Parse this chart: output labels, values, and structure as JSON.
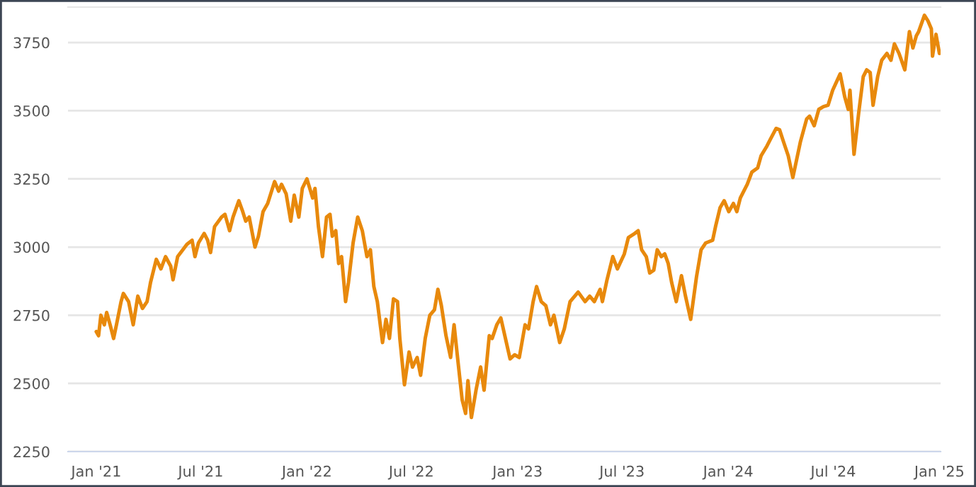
{
  "chart_data": {
    "type": "line",
    "xlim": [
      "2020-11-13",
      "2025-01-03"
    ],
    "ylim": [
      2250,
      3880
    ],
    "xticks": [
      {
        "value": "2021-01-01",
        "label": "Jan '21"
      },
      {
        "value": "2021-07-01",
        "label": "Jul '21"
      },
      {
        "value": "2022-01-01",
        "label": "Jan '22"
      },
      {
        "value": "2022-07-01",
        "label": "Jul '22"
      },
      {
        "value": "2023-01-01",
        "label": "Jan '23"
      },
      {
        "value": "2023-07-01",
        "label": "Jul '23"
      },
      {
        "value": "2024-01-01",
        "label": "Jan '24"
      },
      {
        "value": "2024-07-01",
        "label": "Jul '24"
      },
      {
        "value": "2025-01-01",
        "label": "Jan '25"
      }
    ],
    "yticks": [
      2250,
      2500,
      2750,
      3000,
      3250,
      3500,
      3750
    ],
    "grid": "y",
    "marker": "none",
    "line_style": "solid",
    "series": [
      {
        "color": "#e8890c",
        "x": [
          "2021-01-01",
          "2021-01-05",
          "2021-01-09",
          "2021-01-15",
          "2021-01-19",
          "2021-01-25",
          "2021-01-31",
          "2021-02-05",
          "2021-02-13",
          "2021-02-17",
          "2021-02-26",
          "2021-03-06",
          "2021-03-14",
          "2021-03-22",
          "2021-03-30",
          "2021-04-05",
          "2021-04-15",
          "2021-04-23",
          "2021-05-01",
          "2021-05-10",
          "2021-05-14",
          "2021-05-22",
          "2021-06-07",
          "2021-06-16",
          "2021-06-21",
          "2021-06-27",
          "2021-07-07",
          "2021-07-13",
          "2021-07-18",
          "2021-07-25",
          "2021-08-06",
          "2021-08-12",
          "2021-08-20",
          "2021-08-26",
          "2021-09-05",
          "2021-09-11",
          "2021-09-17",
          "2021-09-23",
          "2021-10-03",
          "2021-10-09",
          "2021-10-17",
          "2021-10-25",
          "2021-11-06",
          "2021-11-13",
          "2021-11-18",
          "2021-11-26",
          "2021-12-04",
          "2021-12-10",
          "2021-12-18",
          "2021-12-24",
          "2022-01-01",
          "2022-01-11",
          "2022-01-15",
          "2022-01-21",
          "2022-01-28",
          "2022-02-04",
          "2022-02-10",
          "2022-02-14",
          "2022-02-20",
          "2022-02-25",
          "2022-03-02",
          "2022-03-09",
          "2022-03-14",
          "2022-03-22",
          "2022-03-30",
          "2022-04-07",
          "2022-04-15",
          "2022-04-21",
          "2022-04-27",
          "2022-05-03",
          "2022-05-12",
          "2022-05-18",
          "2022-05-24",
          "2022-05-31",
          "2022-06-07",
          "2022-06-11",
          "2022-06-19",
          "2022-06-27",
          "2022-07-03",
          "2022-07-11",
          "2022-07-17",
          "2022-07-25",
          "2022-08-02",
          "2022-08-10",
          "2022-08-16",
          "2022-08-22",
          "2022-08-30",
          "2022-09-07",
          "2022-09-13",
          "2022-09-19",
          "2022-09-27",
          "2022-10-03",
          "2022-10-07",
          "2022-10-13",
          "2022-10-21",
          "2022-10-29",
          "2022-11-04",
          "2022-11-13",
          "2022-11-18",
          "2022-11-26",
          "2022-12-03",
          "2022-12-11",
          "2022-12-19",
          "2022-12-27",
          "2023-01-04",
          "2023-01-14",
          "2023-01-20",
          "2023-01-28",
          "2023-02-03",
          "2023-02-11",
          "2023-02-19",
          "2023-02-27",
          "2023-03-05",
          "2023-03-15",
          "2023-03-23",
          "2023-04-02",
          "2023-04-16",
          "2023-04-28",
          "2023-05-06",
          "2023-05-14",
          "2023-05-24",
          "2023-05-28",
          "2023-06-05",
          "2023-06-15",
          "2023-06-23",
          "2023-07-05",
          "2023-07-12",
          "2023-07-23",
          "2023-07-29",
          "2023-08-04",
          "2023-08-12",
          "2023-08-18",
          "2023-08-25",
          "2023-08-31",
          "2023-09-07",
          "2023-09-13",
          "2023-09-19",
          "2023-09-25",
          "2023-10-03",
          "2023-10-12",
          "2023-10-19",
          "2023-10-28",
          "2023-11-07",
          "2023-11-15",
          "2023-11-23",
          "2023-12-05",
          "2023-12-10",
          "2023-12-18",
          "2023-12-25",
          "2024-01-02",
          "2024-01-10",
          "2024-01-16",
          "2024-01-22",
          "2024-02-03",
          "2024-02-11",
          "2024-02-21",
          "2024-02-27",
          "2024-03-08",
          "2024-03-14",
          "2024-03-24",
          "2024-03-30",
          "2024-04-06",
          "2024-04-14",
          "2024-04-22",
          "2024-04-30",
          "2024-05-05",
          "2024-05-16",
          "2024-05-21",
          "2024-05-29",
          "2024-06-06",
          "2024-06-14",
          "2024-06-22",
          "2024-06-30",
          "2024-07-13",
          "2024-07-21",
          "2024-07-27",
          "2024-07-30",
          "2024-08-06",
          "2024-08-14",
          "2024-08-22",
          "2024-08-28",
          "2024-09-03",
          "2024-09-08",
          "2024-09-16",
          "2024-09-23",
          "2024-10-02",
          "2024-10-09",
          "2024-10-15",
          "2024-10-23",
          "2024-11-02",
          "2024-11-10",
          "2024-11-16",
          "2024-11-22",
          "2024-11-26",
          "2024-12-06",
          "2024-12-12",
          "2024-12-18",
          "2024-12-20",
          "2024-12-26",
          "2025-01-01"
        ],
        "values": [
          2690,
          2675,
          2750,
          2715,
          2760,
          2715,
          2665,
          2715,
          2800,
          2830,
          2800,
          2715,
          2820,
          2775,
          2800,
          2870,
          2955,
          2920,
          2965,
          2930,
          2880,
          2965,
          3010,
          3025,
          2965,
          3015,
          3050,
          3025,
          2980,
          3075,
          3110,
          3120,
          3060,
          3110,
          3170,
          3135,
          3095,
          3110,
          3000,
          3040,
          3130,
          3160,
          3240,
          3205,
          3230,
          3195,
          3095,
          3190,
          3110,
          3215,
          3250,
          3180,
          3215,
          3075,
          2965,
          3110,
          3120,
          3040,
          3060,
          2940,
          2965,
          2800,
          2870,
          3015,
          3110,
          3060,
          2965,
          2990,
          2855,
          2800,
          2650,
          2735,
          2665,
          2810,
          2800,
          2665,
          2495,
          2615,
          2560,
          2595,
          2530,
          2665,
          2750,
          2770,
          2845,
          2785,
          2675,
          2595,
          2715,
          2595,
          2440,
          2390,
          2510,
          2375,
          2475,
          2560,
          2475,
          2675,
          2665,
          2715,
          2740,
          2665,
          2590,
          2605,
          2595,
          2715,
          2700,
          2800,
          2855,
          2800,
          2785,
          2715,
          2750,
          2650,
          2700,
          2800,
          2835,
          2800,
          2820,
          2800,
          2845,
          2800,
          2880,
          2965,
          2920,
          2975,
          3035,
          3050,
          3060,
          2990,
          2965,
          2905,
          2915,
          2990,
          2965,
          2975,
          2940,
          2870,
          2800,
          2895,
          2820,
          2735,
          2890,
          2990,
          3015,
          3025,
          3075,
          3145,
          3170,
          3130,
          3160,
          3130,
          3180,
          3230,
          3275,
          3290,
          3335,
          3370,
          3395,
          3435,
          3430,
          3385,
          3335,
          3255,
          3335,
          3385,
          3470,
          3480,
          3445,
          3505,
          3515,
          3520,
          3575,
          3635,
          3550,
          3505,
          3575,
          3340,
          3490,
          3625,
          3650,
          3640,
          3520,
          3625,
          3685,
          3710,
          3685,
          3745,
          3710,
          3650,
          3790,
          3730,
          3775,
          3790,
          3850,
          3830,
          3800,
          3700,
          3780,
          3710
        ]
      }
    ]
  }
}
